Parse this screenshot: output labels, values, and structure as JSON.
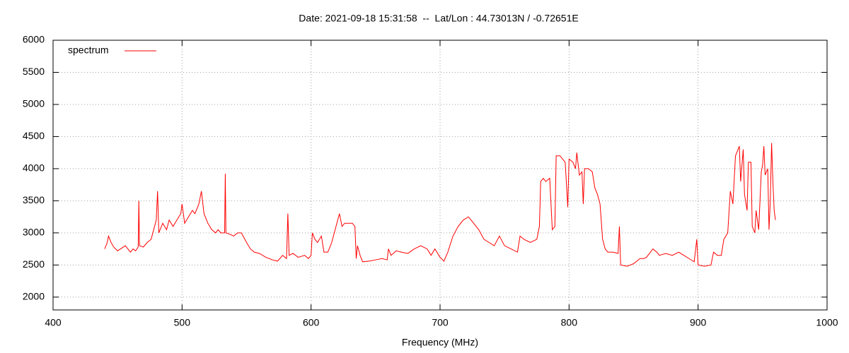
{
  "chart_data": {
    "type": "line",
    "title": "Date: 2021-09-18 15:31:58  --  Lat/Lon : 44.73013N / -0.72651E",
    "xlabel": "Frequency (MHz)",
    "xlim": [
      400,
      1000
    ],
    "ylim": [
      1800,
      6000
    ],
    "xticks": [
      400,
      500,
      600,
      700,
      800,
      900,
      1000
    ],
    "yticks": [
      2000,
      2500,
      3000,
      3500,
      4000,
      4500,
      5000,
      5500,
      6000
    ],
    "grid": true,
    "legend": "top-left",
    "x": [
      440,
      442,
      443,
      445,
      447,
      450,
      453,
      456,
      458,
      460,
      462,
      464,
      466,
      466.5,
      467,
      470,
      473,
      476,
      478,
      480,
      481,
      482,
      485,
      488,
      490,
      493,
      496,
      499,
      500,
      502,
      505,
      508,
      510,
      513,
      515,
      517,
      520,
      523,
      526,
      528,
      530,
      533,
      533.5,
      534,
      537,
      540,
      543,
      546,
      550,
      553,
      556,
      560,
      565,
      570,
      574,
      578,
      581,
      582,
      583,
      586,
      590,
      595,
      598,
      600,
      601,
      603,
      605,
      608,
      610,
      613,
      616,
      618,
      620,
      622,
      624,
      626,
      629,
      632,
      634,
      635,
      636,
      638,
      640,
      645,
      650,
      655,
      659,
      660,
      662,
      666,
      670,
      675,
      680,
      685,
      690,
      693,
      696,
      700,
      703,
      706,
      710,
      714,
      718,
      722,
      726,
      730,
      734,
      738,
      742,
      746,
      750,
      755,
      760,
      762,
      765,
      770,
      775,
      777,
      778,
      780,
      782,
      785,
      787,
      789,
      790,
      793,
      795,
      797,
      799,
      800,
      803,
      805,
      806,
      808,
      810,
      811,
      812,
      815,
      818,
      820,
      822,
      824,
      826,
      828,
      830,
      834,
      838,
      839,
      840,
      845,
      850,
      855,
      858,
      860,
      865,
      868,
      870,
      875,
      880,
      885,
      889,
      893,
      897,
      899,
      900,
      905,
      910,
      912,
      915,
      918,
      920,
      923,
      925,
      927,
      929,
      932,
      933,
      935,
      936,
      938,
      939,
      941,
      942,
      944,
      945,
      947,
      949,
      950,
      951,
      952,
      954,
      955,
      956,
      957,
      958,
      959,
      960
    ],
    "series": [
      {
        "name": "spectrum",
        "color": "#ff0000",
        "values": [
          2750,
          2850,
          2950,
          2850,
          2780,
          2720,
          2760,
          2800,
          2750,
          2700,
          2750,
          2720,
          2780,
          3500,
          2800,
          2780,
          2850,
          2900,
          3050,
          3200,
          3650,
          3000,
          3150,
          3050,
          3200,
          3100,
          3200,
          3300,
          3450,
          3150,
          3250,
          3350,
          3300,
          3450,
          3650,
          3300,
          3150,
          3050,
          3000,
          3050,
          3000,
          3000,
          3920,
          3000,
          2980,
          2950,
          3000,
          3000,
          2850,
          2750,
          2700,
          2680,
          2620,
          2580,
          2560,
          2650,
          2600,
          3300,
          2650,
          2680,
          2620,
          2650,
          2600,
          2650,
          3000,
          2900,
          2850,
          2950,
          2700,
          2700,
          2850,
          3000,
          3150,
          3300,
          3100,
          3150,
          3150,
          3150,
          3100,
          2600,
          2800,
          2650,
          2550,
          2560,
          2580,
          2600,
          2580,
          2750,
          2650,
          2720,
          2700,
          2680,
          2750,
          2800,
          2750,
          2650,
          2750,
          2620,
          2560,
          2700,
          2950,
          3100,
          3200,
          3250,
          3150,
          3050,
          2900,
          2850,
          2800,
          2950,
          2800,
          2750,
          2700,
          2950,
          2900,
          2850,
          2900,
          3100,
          3800,
          3850,
          3800,
          3850,
          3050,
          3100,
          4200,
          4200,
          4150,
          4100,
          3400,
          4150,
          4100,
          4000,
          4250,
          3900,
          3950,
          3450,
          4000,
          4000,
          3950,
          3700,
          3600,
          3450,
          2900,
          2750,
          2700,
          2700,
          2680,
          3100,
          2500,
          2480,
          2520,
          2600,
          2600,
          2620,
          2750,
          2700,
          2650,
          2680,
          2650,
          2700,
          2650,
          2600,
          2550,
          2900,
          2500,
          2480,
          2500,
          2700,
          2650,
          2650,
          2900,
          3000,
          3650,
          3450,
          4200,
          4350,
          3800,
          4300,
          3600,
          3350,
          4100,
          4100,
          3100,
          3000,
          3350,
          3050,
          3950,
          4050,
          4350,
          3900,
          4000,
          3050,
          3500,
          4400,
          3800,
          3350,
          3200
        ]
      }
    ]
  }
}
